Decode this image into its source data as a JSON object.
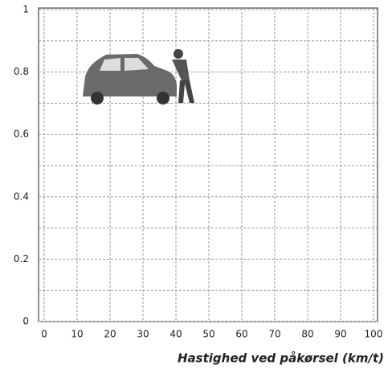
{
  "chart_data": {
    "type": "line",
    "x_label": "Hastighed ved påkørsel (km/t)",
    "xlim": [
      0,
      100
    ],
    "xticks": [
      0,
      10,
      20,
      30,
      40,
      50,
      60,
      70,
      80,
      90,
      100
    ],
    "ylim": [
      0,
      1
    ],
    "yticks": [
      0,
      0.2,
      0.4,
      0.6,
      0.8,
      1
    ],
    "ygrid": [
      0.1,
      0.3,
      0.5,
      0.7,
      0.9
    ],
    "grid": true
  }
}
